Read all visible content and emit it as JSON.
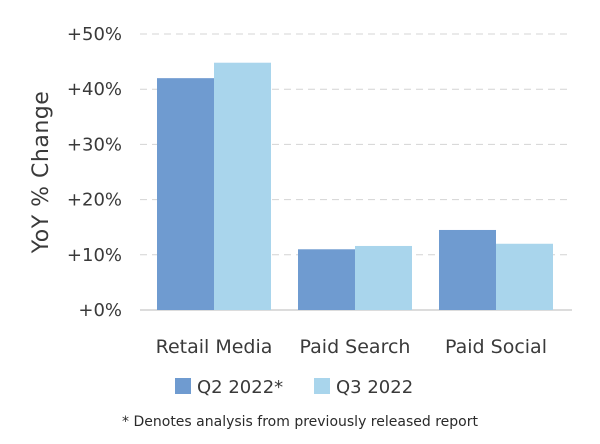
{
  "chart_data": {
    "type": "bar",
    "title": "",
    "xlabel": "",
    "ylabel": "YoY % Change",
    "categories": [
      "Retail Media",
      "Paid Search",
      "Paid Social"
    ],
    "series": [
      {
        "name": "Q2 2022*",
        "values": [
          42,
          11,
          14.5
        ],
        "color": "#6f9bd0"
      },
      {
        "name": "Q3 2022",
        "values": [
          44.8,
          11.6,
          12
        ],
        "color": "#a9d5ec"
      }
    ],
    "ylim": [
      0,
      50
    ],
    "yticks": [
      0,
      10,
      20,
      30,
      40,
      50
    ],
    "ytick_labels": [
      "+0%",
      "+10%",
      "+20%",
      "+30%",
      "+40%",
      "+50%"
    ],
    "grid": true,
    "grid_style": "dashed",
    "legend_position": "bottom"
  },
  "footnote": "* Denotes analysis from previously released report"
}
